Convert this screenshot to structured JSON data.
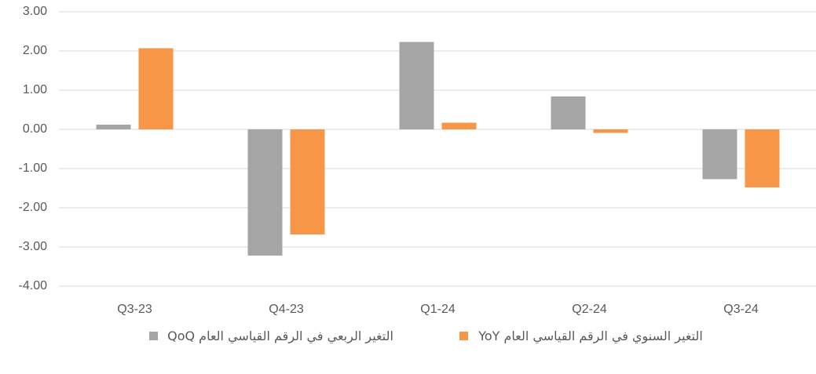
{
  "chart_data": {
    "type": "bar",
    "categories": [
      "Q3-23",
      "Q4-23",
      "Q1-24",
      "Q2-24",
      "Q3-24"
    ],
    "series": [
      {
        "name": "التغير الربعي  في الرقم القياسي العام QoQ",
        "color": "#a5a5a5",
        "values": [
          0.12,
          -3.22,
          2.23,
          0.84,
          -1.27
        ]
      },
      {
        "name": "التغير السنوي في الرقم القياسي العام YoY",
        "color": "#f79646",
        "values": [
          2.07,
          -2.68,
          0.17,
          -0.09,
          -1.48
        ]
      }
    ],
    "ylim": [
      -4,
      3
    ],
    "yticks": [
      {
        "value": -4,
        "label": "-4.00"
      },
      {
        "value": -3,
        "label": "-3.00"
      },
      {
        "value": -2,
        "label": "-2.00"
      },
      {
        "value": -1,
        "label": "-1.00"
      },
      {
        "value": 0,
        "label": "0.00"
      },
      {
        "value": 1,
        "label": "1.00"
      },
      {
        "value": 2,
        "label": "2.00"
      },
      {
        "value": 3,
        "label": "3.00"
      }
    ],
    "grid": true
  }
}
